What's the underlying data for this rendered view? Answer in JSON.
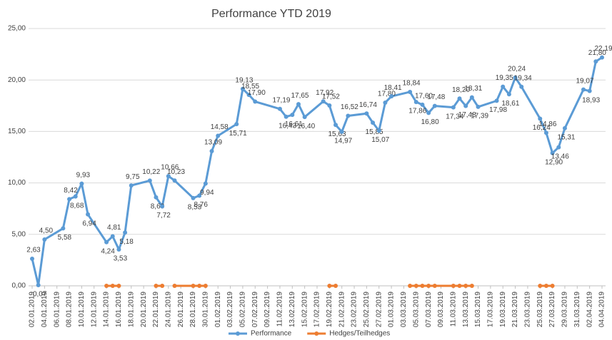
{
  "chart_data": {
    "type": "line",
    "title": "Performance YTD 2019",
    "x": [
      "02.01.2019",
      "03.01.2019",
      "04.01.2019",
      "07.01.2019",
      "08.01.2019",
      "09.01.2019",
      "10.01.2019",
      "11.01.2019",
      "14.01.2019",
      "15.01.2019",
      "16.01.2019",
      "17.01.2019",
      "18.01.2019",
      "21.01.2019",
      "22.01.2019",
      "23.01.2019",
      "24.01.2019",
      "25.01.2019",
      "28.01.2019",
      "29.01.2019",
      "30.01.2019",
      "31.01.2019",
      "01.02.2019",
      "04.02.2019",
      "05.02.2019",
      "06.02.2019",
      "07.02.2019",
      "11.02.2019",
      "12.02.2019",
      "13.02.2019",
      "14.02.2019",
      "15.02.2019",
      "18.02.2019",
      "19.02.2019",
      "20.02.2019",
      "21.02.2019",
      "22.02.2019",
      "25.02.2019",
      "26.02.2019",
      "27.02.2019",
      "28.02.2019",
      "01.03.2019",
      "04.03.2019",
      "05.03.2019",
      "06.03.2019",
      "07.03.2019",
      "08.03.2019",
      "11.03.2019",
      "12.03.2019",
      "13.03.2019",
      "14.03.2019",
      "15.03.2019",
      "18.03.2019",
      "19.03.2019",
      "20.03.2019",
      "21.03.2019",
      "22.03.2019",
      "25.03.2019",
      "26.03.2019",
      "27.03.2019",
      "28.03.2019",
      "29.03.2019",
      "01.04.2019",
      "02.04.2019",
      "03.04.2019",
      "04.04.2019"
    ],
    "series": [
      {
        "name": "Performance",
        "color": "#5b9bd5",
        "values": [
          2.63,
          0.07,
          4.5,
          5.58,
          8.42,
          8.68,
          9.93,
          6.94,
          4.24,
          4.81,
          3.53,
          5.18,
          9.75,
          10.22,
          8.6,
          7.72,
          10.66,
          10.23,
          8.53,
          8.76,
          9.94,
          13.09,
          14.58,
          15.71,
          19.13,
          18.55,
          17.9,
          17.19,
          16.43,
          16.61,
          17.65,
          16.4,
          17.92,
          17.52,
          15.63,
          14.97,
          16.52,
          16.74,
          15.85,
          15.07,
          17.8,
          18.41,
          18.84,
          17.86,
          17.6,
          16.8,
          17.48,
          17.34,
          18.2,
          17.48,
          18.31,
          17.39,
          17.98,
          19.35,
          18.61,
          20.24,
          19.34,
          16.24,
          14.86,
          12.9,
          13.46,
          15.31,
          19.07,
          18.93,
          21.8,
          22.19
        ],
        "value_labels": [
          "2,63",
          "0,07",
          "4,50",
          "5,58",
          "8,42",
          "8,68",
          "9,93",
          "6,94",
          "4,24",
          "4,81",
          "3,53",
          "5,18",
          "9,75",
          "10,22",
          "8,60",
          "7,72",
          "10,66",
          "10,23",
          "8,53",
          "8,76",
          "9,94",
          "13,09",
          "14,58",
          "15,71",
          "19,13",
          "18,55",
          "17,90",
          "17,19",
          "16,43",
          "16,61",
          "17,65",
          "16,40",
          "17,92",
          "17,52",
          "15,63",
          "14,97",
          "16,52",
          "16,74",
          "15,85",
          "15,07",
          "17,80",
          "18,41",
          "18,84",
          "17,86",
          "17,60",
          "16,80",
          "17,48",
          "17,34",
          "18,20",
          "17,48",
          "18,31",
          "17,39",
          "17,98",
          "19,35",
          "18,61",
          "20,24",
          "19,34",
          "16,24",
          "14,86",
          "12,90",
          "13,46",
          "15,31",
          "19,07",
          "18,93",
          "21,80",
          "22,19"
        ]
      },
      {
        "name": "Hedges/Teilhedges",
        "color": "#ed7d31",
        "values": [
          null,
          null,
          null,
          null,
          null,
          null,
          null,
          null,
          0,
          0,
          0,
          null,
          null,
          null,
          0,
          0,
          null,
          0,
          0,
          0,
          0,
          null,
          null,
          null,
          null,
          null,
          null,
          null,
          null,
          null,
          null,
          null,
          null,
          0,
          0,
          null,
          null,
          null,
          null,
          null,
          null,
          null,
          0,
          0,
          0,
          0,
          0,
          0,
          0,
          0,
          0,
          null,
          null,
          null,
          null,
          null,
          null,
          0,
          0,
          0,
          null,
          null,
          null,
          null,
          null,
          null
        ]
      }
    ],
    "xlim": [
      "02.01.2019",
      "04.04.2019"
    ],
    "xticks": [
      "02.01.2019",
      "04.01.2019",
      "06.01.2019",
      "08.01.2019",
      "10.01.2019",
      "12.01.2019",
      "14.01.2019",
      "16.01.2019",
      "18.01.2019",
      "20.01.2019",
      "22.01.2019",
      "24.01.2019",
      "26.01.2019",
      "28.01.2019",
      "30.01.2019",
      "01.02.2019",
      "03.02.2019",
      "05.02.2019",
      "07.02.2019",
      "09.02.2019",
      "11.02.2019",
      "13.02.2019",
      "15.02.2019",
      "17.02.2019",
      "19.02.2019",
      "21.02.2019",
      "23.02.2019",
      "25.02.2019",
      "27.02.2019",
      "01.03.2019",
      "03.03.2019",
      "05.03.2019",
      "07.03.2019",
      "09.03.2019",
      "11.03.2019",
      "13.03.2019",
      "15.03.2019",
      "17.03.2019",
      "19.03.2019",
      "21.03.2019",
      "23.03.2019",
      "25.03.2019",
      "27.03.2019",
      "29.03.2019",
      "31.03.2019",
      "02.04.2019",
      "04.04.2019"
    ],
    "ylim": [
      0,
      25
    ],
    "yticks": [
      {
        "value": 0,
        "label": "0,00"
      },
      {
        "value": 5,
        "label": "5,00"
      },
      {
        "value": 10,
        "label": "10,00"
      },
      {
        "value": 15,
        "label": "15,00"
      },
      {
        "value": 20,
        "label": "20,00"
      },
      {
        "value": 25,
        "label": "25,00"
      }
    ],
    "grid": true,
    "legend": "bottom"
  }
}
